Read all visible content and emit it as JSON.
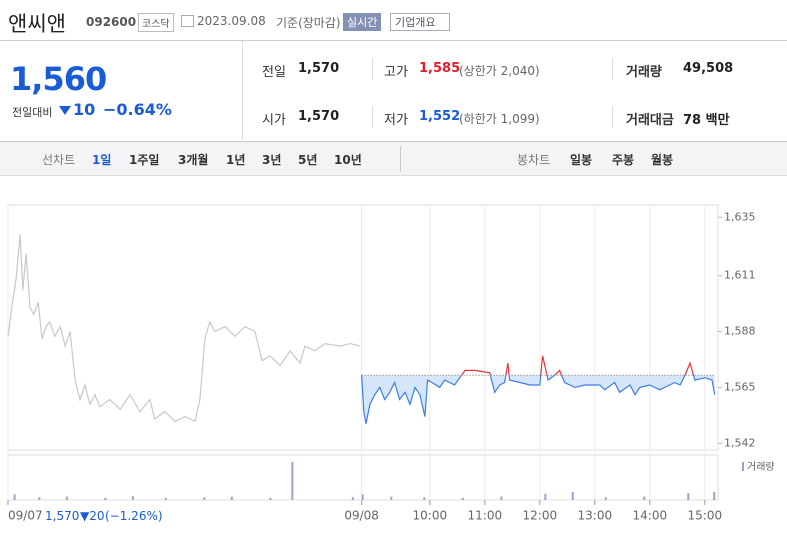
{
  "header": {
    "name": "앤씨앤",
    "code": "092600",
    "market": "코스닥",
    "date": "2023.09.08",
    "basis": "기준(장마감)",
    "realtime": "실시간",
    "overview": "기업개요"
  },
  "quote": {
    "price": "1,560",
    "change_label": "전일대비",
    "change": "10",
    "change_pct": "−0.64%",
    "table": [
      [
        {
          "label": "전일",
          "value": "1,570"
        },
        {
          "label": "고가",
          "value": "1,585",
          "note": "(상한가 2,040)"
        },
        {
          "label": "거래량",
          "value": "49,508"
        }
      ],
      [
        {
          "label": "시가",
          "value": "1,570"
        },
        {
          "label": "저가",
          "value": "1,552",
          "note": "(하한가 1,099)"
        },
        {
          "label": "거래대금",
          "value": "78 백만"
        }
      ]
    ]
  },
  "tabs": {
    "line_label": "선차트",
    "line": [
      "1일",
      "1주일",
      "3개월",
      "1년",
      "3년",
      "5년",
      "10년"
    ],
    "candle_label": "봉차트",
    "candle": [
      "일봉",
      "주봉",
      "월봉"
    ]
  },
  "footer": {
    "close": "1,570",
    "change": "▼20",
    "pct": "(−1.26%)"
  },
  "chart_data": {
    "type": "line",
    "xlim": [
      2.33,
      15.24
    ],
    "xticks": [
      {
        "value": 2.33,
        "label": "09/07"
      },
      {
        "value": 8.76,
        "label": "09/08"
      },
      {
        "value": 10,
        "label": "10:00"
      },
      {
        "value": 11,
        "label": "11:00"
      },
      {
        "value": 12,
        "label": "12:00"
      },
      {
        "value": 13,
        "label": "13:00"
      },
      {
        "value": 14,
        "label": "14:00"
      },
      {
        "value": 15,
        "label": "15:00"
      }
    ],
    "ylim": [
      1538,
      1638
    ],
    "yticks": [
      {
        "value": 1635,
        "label": "1,635"
      },
      {
        "value": 1611,
        "label": "1,611"
      },
      {
        "value": 1588,
        "label": "1,588"
      },
      {
        "value": 1565,
        "label": "1,565"
      },
      {
        "value": 1542,
        "label": "1,542"
      }
    ],
    "reference": 1570,
    "y2lim": [
      0,
      4000
    ],
    "series": [
      {
        "color": "#c8c8c8",
        "x": [
          2.33,
          2.4,
          2.48,
          2.55,
          2.6,
          2.66,
          2.73,
          2.8,
          2.88,
          2.95,
          3.02,
          3.09,
          3.18,
          3.28,
          3.37,
          3.46,
          3.55,
          3.64,
          3.73,
          3.82,
          3.91,
          4.0,
          4.18,
          4.37,
          4.55,
          4.73,
          4.91,
          5.0,
          5.18,
          5.37,
          5.55,
          5.73,
          5.82,
          5.91,
          6.0,
          6.09,
          6.28,
          6.46,
          6.64,
          6.82,
          6.95,
          7.09,
          7.28,
          7.46,
          7.64,
          7.73,
          7.91,
          8.09,
          8.37,
          8.55,
          8.73
        ],
        "values": [
          1586,
          1598,
          1610,
          1628,
          1605,
          1620,
          1598,
          1595,
          1600,
          1585,
          1590,
          1592,
          1586,
          1590,
          1582,
          1588,
          1568,
          1560,
          1566,
          1558,
          1562,
          1557,
          1560,
          1556,
          1562,
          1555,
          1560,
          1552,
          1555,
          1551,
          1553,
          1551,
          1560,
          1585,
          1592,
          1588,
          1590,
          1586,
          1590,
          1588,
          1576,
          1578,
          1574,
          1580,
          1575,
          1582,
          1580,
          1583,
          1582,
          1583,
          1582
        ]
      },
      {
        "color": "#3d7ee0",
        "up_color": "#e8333d",
        "fill": "#d6e6fa",
        "x": [
          8.76,
          8.8,
          8.84,
          8.91,
          9.0,
          9.09,
          9.18,
          9.27,
          9.36,
          9.45,
          9.55,
          9.64,
          9.73,
          9.82,
          9.91,
          9.96,
          10.04,
          10.18,
          10.27,
          10.45,
          10.64,
          10.82,
          11.09,
          11.18,
          11.27,
          11.36,
          11.42,
          11.45,
          11.64,
          11.82,
          12.0,
          12.05,
          12.15,
          12.27,
          12.36,
          12.45,
          12.64,
          12.82,
          13.09,
          13.18,
          13.36,
          13.45,
          13.64,
          13.73,
          13.82,
          14.0,
          14.18,
          14.36,
          14.45,
          14.55,
          14.64,
          14.73,
          14.82,
          15.0,
          15.13,
          15.18
        ],
        "values": [
          1570,
          1555,
          1550,
          1558,
          1562,
          1565,
          1560,
          1563,
          1567,
          1560,
          1563,
          1558,
          1565,
          1562,
          1553,
          1568,
          1567,
          1565,
          1568,
          1566,
          1572,
          1572,
          1571,
          1563,
          1566,
          1567,
          1575,
          1568,
          1567,
          1566,
          1566,
          1578,
          1568,
          1570,
          1572,
          1567,
          1565,
          1566,
          1566,
          1564,
          1567,
          1563,
          1566,
          1562,
          1565,
          1566,
          1564,
          1566,
          1567,
          1566,
          1570,
          1575,
          1568,
          1569,
          1568,
          1562
        ]
      },
      {
        "name": "거래량",
        "type": "bar",
        "axis": "y2",
        "color": "#9aa3c8",
        "x": [
          2.45,
          2.9,
          3.4,
          4.1,
          4.6,
          5.2,
          5.9,
          6.4,
          7.1,
          7.5,
          8.6,
          8.78,
          9.3,
          9.9,
          10.6,
          11.3,
          12.1,
          12.6,
          13.2,
          13.9,
          14.7,
          15.17
        ],
        "values": [
          500,
          250,
          300,
          200,
          350,
          200,
          250,
          300,
          200,
          3400,
          250,
          500,
          300,
          250,
          200,
          300,
          550,
          700,
          250,
          300,
          600,
          700
        ]
      }
    ]
  }
}
